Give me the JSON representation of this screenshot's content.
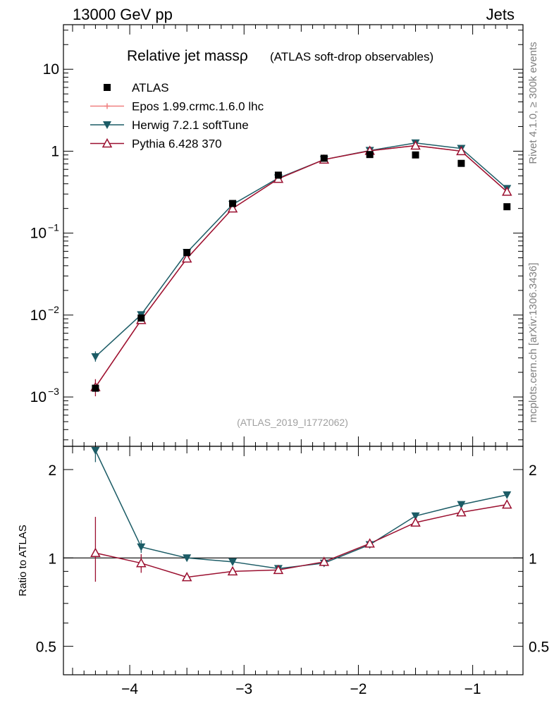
{
  "header": {
    "left": "13000 GeV pp",
    "right": "Jets"
  },
  "title": {
    "main": "Relative jet massρ",
    "sub": "(ATLAS soft-drop observables)"
  },
  "side_labels": {
    "top": "Rivet 4.1.0, ≥ 300k events",
    "bottom": "mcplots.cern.ch [arXiv:1306.3436]"
  },
  "watermark": "(ATLAS_2019_I1772062)",
  "colors": {
    "atlas": "#000000",
    "epos": "#f08080",
    "herwig": "#1c5c66",
    "pythia": "#9b1030"
  },
  "chart_data": [
    {
      "type": "line",
      "title": "Relative jet massρ (ATLAS soft-drop observables)",
      "xlabel": "",
      "ylabel": "",
      "yscale": "log",
      "xlim": [
        -4.58,
        -0.56
      ],
      "ylim": [
        0.00025,
        35
      ],
      "y_ticks": [
        {
          "value": 0.001,
          "base": "10",
          "exp": "−3"
        },
        {
          "value": 0.01,
          "base": "10",
          "exp": "−2"
        },
        {
          "value": 0.1,
          "base": "10",
          "exp": "−1"
        },
        {
          "value": 1,
          "base": "1",
          "exp": ""
        },
        {
          "value": 10,
          "base": "10",
          "exp": ""
        }
      ],
      "x": [
        -4.3,
        -3.9,
        -3.5,
        -3.1,
        -2.7,
        -2.3,
        -1.9,
        -1.5,
        -1.1,
        -0.7
      ],
      "series": [
        {
          "name": "ATLAS",
          "marker": "square",
          "values": [
            0.00128,
            0.0092,
            0.058,
            0.23,
            0.51,
            0.82,
            0.91,
            0.9,
            0.71,
            0.21
          ]
        },
        {
          "name": "Epos 1.99.crmc.1.6.0 lhc",
          "marker": "cross",
          "values": [
            0.00132,
            0.0087,
            0.049,
            0.2,
            0.46,
            0.79,
            1.01,
            1.17,
            1.0,
            0.32
          ]
        },
        {
          "name": "Herwig 7.2.1 softTune",
          "marker": "triangle-down",
          "values": [
            0.0031,
            0.0101,
            0.058,
            0.224,
            0.47,
            0.79,
            1.02,
            1.26,
            1.08,
            0.35
          ]
        },
        {
          "name": "Pythia 6.428 370",
          "marker": "triangle-up",
          "values": [
            0.00132,
            0.0087,
            0.049,
            0.2,
            0.46,
            0.79,
            1.01,
            1.17,
            1.0,
            0.32
          ]
        }
      ]
    },
    {
      "type": "line",
      "title": "",
      "xlabel": "",
      "ylabel": "Ratio to ATLAS",
      "yscale": "log",
      "xlim": [
        -4.58,
        -0.56
      ],
      "ylim": [
        0.4,
        2.4
      ],
      "y_ticks": [
        {
          "value": 0.5,
          "label": "0.5"
        },
        {
          "value": 1,
          "label": "1"
        },
        {
          "value": 2,
          "label": "2"
        }
      ],
      "x_ticks": [
        {
          "value": -4,
          "label": "−4"
        },
        {
          "value": -3,
          "label": "−3"
        },
        {
          "value": -2,
          "label": "−2"
        },
        {
          "value": -1,
          "label": "−1"
        }
      ],
      "x": [
        -4.3,
        -3.9,
        -3.5,
        -3.1,
        -2.7,
        -2.3,
        -1.9,
        -1.5,
        -1.1,
        -0.7
      ],
      "series": [
        {
          "name": "Herwig 7.2.1 softTune",
          "marker": "triangle-down",
          "values": [
            2.42,
            1.09,
            1.0,
            0.97,
            0.92,
            0.96,
            1.11,
            1.39,
            1.52,
            1.64
          ]
        },
        {
          "name": "Pythia 6.428 370",
          "marker": "triangle-up",
          "values": [
            1.04,
            0.96,
            0.86,
            0.9,
            0.91,
            0.97,
            1.12,
            1.32,
            1.43,
            1.52
          ]
        }
      ]
    }
  ]
}
